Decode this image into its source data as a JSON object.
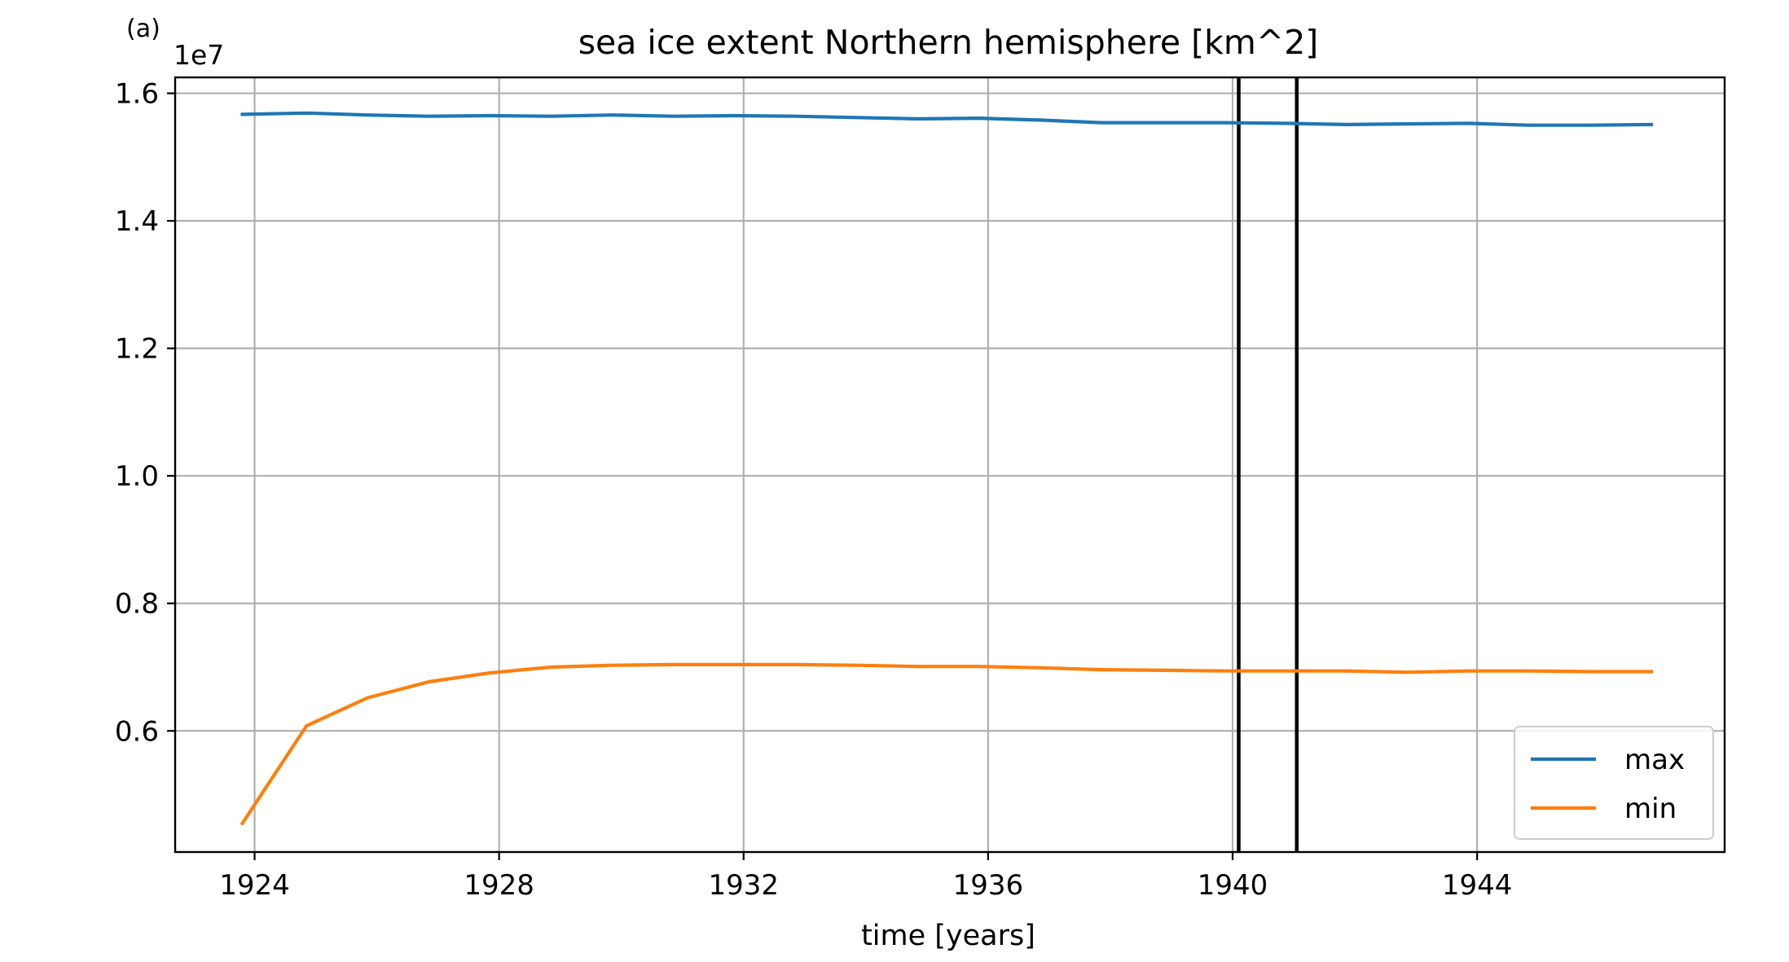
{
  "panel_label": "(a)",
  "chart_data": {
    "type": "line",
    "title": "sea ice extent Northern hemisphere [km^2]",
    "xlabel": "time [years]",
    "ylabel": "",
    "y_offset_label": "1e7",
    "xlim": [
      1922.7,
      1948.05
    ],
    "ylim": [
      0.41,
      1.625
    ],
    "xticks": [
      1924,
      1928,
      1932,
      1936,
      1940,
      1944
    ],
    "xtick_labels": [
      "1924",
      "1928",
      "1932",
      "1936",
      "1940",
      "1944"
    ],
    "yticks": [
      0.6,
      0.8,
      1.0,
      1.2,
      1.4,
      1.6
    ],
    "ytick_labels": [
      "0.6",
      "0.8",
      "1.0",
      "1.2",
      "1.4",
      "1.6"
    ],
    "grid": true,
    "legend_position": "lower-right",
    "vlines": [
      1940.1,
      1941.05
    ],
    "vline_color": "#000000",
    "series": [
      {
        "name": "max",
        "color": "#1f77b4",
        "x": [
          1923.8,
          1924.85,
          1925.85,
          1926.85,
          1927.85,
          1928.85,
          1929.85,
          1930.85,
          1931.85,
          1932.85,
          1933.85,
          1934.85,
          1935.85,
          1936.85,
          1937.85,
          1938.85,
          1939.85,
          1940.85,
          1941.85,
          1942.85,
          1943.85,
          1944.85,
          1945.85,
          1946.85
        ],
        "y": [
          1.567,
          1.569,
          1.566,
          1.564,
          1.565,
          1.564,
          1.566,
          1.564,
          1.565,
          1.564,
          1.562,
          1.56,
          1.561,
          1.558,
          1.554,
          1.554,
          1.554,
          1.553,
          1.551,
          1.552,
          1.553,
          1.55,
          1.55,
          1.551
        ]
      },
      {
        "name": "min",
        "color": "#ff7f0e",
        "x": [
          1923.8,
          1924.85,
          1925.85,
          1926.85,
          1927.85,
          1928.85,
          1929.85,
          1930.85,
          1931.85,
          1932.85,
          1933.85,
          1934.85,
          1935.85,
          1936.85,
          1937.85,
          1938.85,
          1939.85,
          1940.85,
          1941.85,
          1942.85,
          1943.85,
          1944.85,
          1945.85,
          1946.85
        ],
        "y": [
          0.455,
          0.608,
          0.652,
          0.677,
          0.691,
          0.7,
          0.703,
          0.704,
          0.704,
          0.704,
          0.703,
          0.701,
          0.701,
          0.699,
          0.696,
          0.695,
          0.694,
          0.694,
          0.694,
          0.692,
          0.694,
          0.694,
          0.693,
          0.693
        ]
      }
    ]
  }
}
